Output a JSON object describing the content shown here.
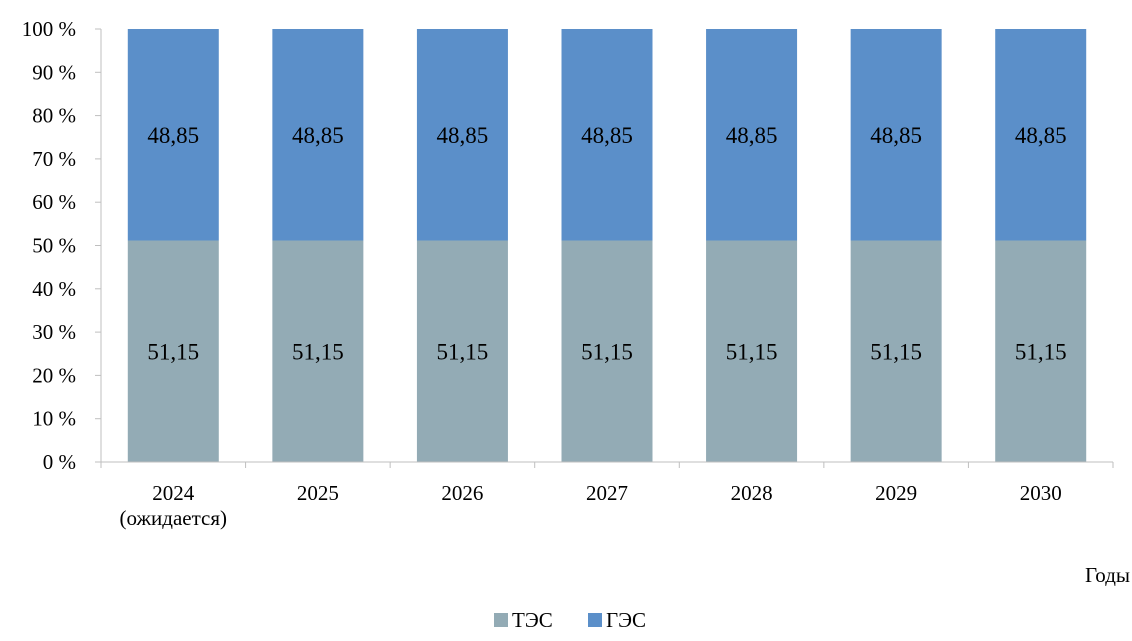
{
  "chart_data": {
    "type": "bar",
    "stacked": true,
    "percent_stacked": true,
    "categories": [
      [
        "2024",
        "(ожидается)"
      ],
      [
        "2025"
      ],
      [
        "2026"
      ],
      [
        "2027"
      ],
      [
        "2028"
      ],
      [
        "2029"
      ],
      [
        "2030"
      ]
    ],
    "series": [
      {
        "name": "ТЭС",
        "color": "#93abb5",
        "values": [
          51.15,
          51.15,
          51.15,
          51.15,
          51.15,
          51.15,
          51.15
        ],
        "data_labels": [
          "51,15",
          "51,15",
          "51,15",
          "51,15",
          "51,15",
          "51,15",
          "51,15"
        ]
      },
      {
        "name": "ГЭС",
        "color": "#5b8fc9",
        "values": [
          48.85,
          48.85,
          48.85,
          48.85,
          48.85,
          48.85,
          48.85
        ],
        "data_labels": [
          "48,85",
          "48,85",
          "48,85",
          "48,85",
          "48,85",
          "48,85",
          "48,85"
        ]
      }
    ],
    "y_ticks": [
      "0 %",
      "10 %",
      "20 %",
      "30 %",
      "40 %",
      "50 %",
      "60 %",
      "70 %",
      "80 %",
      "90 %",
      "100 %"
    ],
    "ylim": [
      0,
      100
    ],
    "xlabel": "Годы",
    "ylabel": "",
    "title": "",
    "grid": false,
    "legend_position": "bottom"
  }
}
